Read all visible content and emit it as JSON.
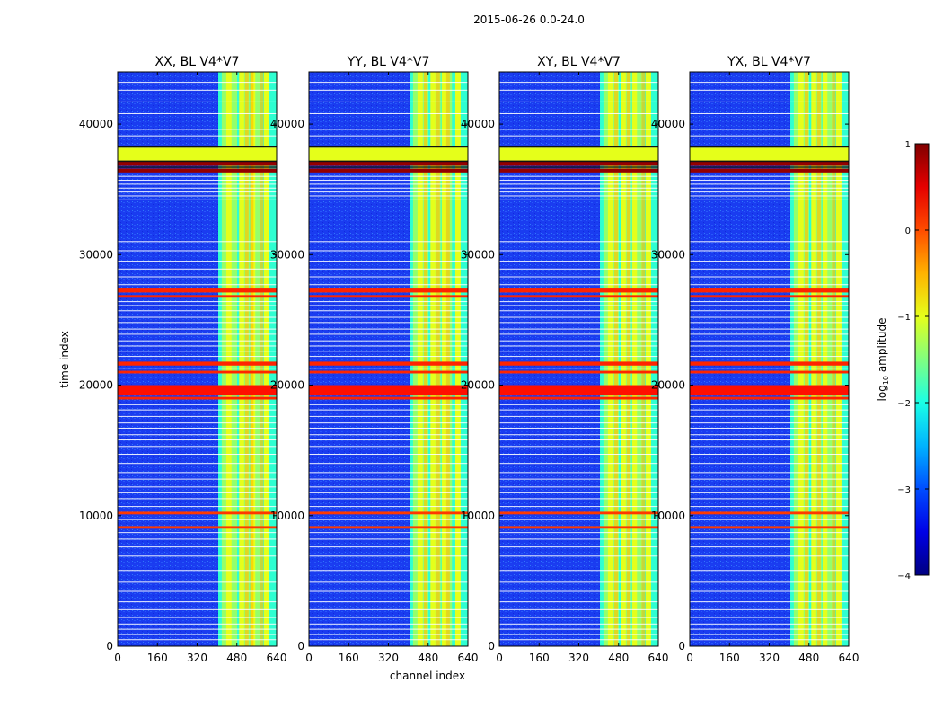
{
  "chart_data": {
    "type": "heatmap",
    "suptitle": "2015-06-26 0.0-24.0",
    "xlabel": "channel index",
    "ylabel": "time index",
    "xlim": [
      0,
      640
    ],
    "ylim": [
      0,
      44000
    ],
    "xticks": [
      "0",
      "160",
      "320",
      "480",
      "640"
    ],
    "yticks": [
      "0",
      "10000",
      "20000",
      "30000",
      "40000"
    ],
    "panels": [
      {
        "title": "XX, BL V4*V7",
        "rfi_band_start_channel": 405,
        "bright_channels": [
          430,
          448,
          470,
          500,
          520,
          545,
          565,
          600
        ],
        "hot_channels": [
          540,
          520,
          580
        ]
      },
      {
        "title": "YY, BL V4*V7",
        "rfi_band_start_channel": 405,
        "bright_channels": [
          430,
          448,
          470,
          500,
          520,
          545,
          565,
          600
        ],
        "hot_channels": [
          520,
          470,
          560
        ]
      },
      {
        "title": "XY, BL V4*V7",
        "rfi_band_start_channel": 405,
        "bright_channels": [
          430,
          448,
          470,
          500,
          520,
          545,
          565,
          600
        ],
        "hot_channels": [
          520,
          470,
          580
        ]
      },
      {
        "title": "YX, BL V4*V7",
        "rfi_band_start_channel": 405,
        "bright_channels": [
          430,
          448,
          470,
          500,
          520,
          545,
          565,
          600
        ],
        "hot_channels": [
          520,
          470,
          580
        ]
      }
    ],
    "flagged_time_ranges": [
      {
        "start": 37200,
        "end": 38200,
        "log10_amplitude": -1.0
      },
      {
        "start": 36800,
        "end": 37200,
        "log10_amplitude": 0.9
      },
      {
        "start": 36300,
        "end": 36600,
        "log10_amplitude": 0.9
      },
      {
        "start": 27100,
        "end": 27400,
        "log10_amplitude": 0.2
      },
      {
        "start": 26700,
        "end": 26900,
        "log10_amplitude": 0.2
      },
      {
        "start": 21500,
        "end": 21800,
        "log10_amplitude": 0.2
      },
      {
        "start": 20900,
        "end": 21100,
        "log10_amplitude": 0.2
      },
      {
        "start": 19200,
        "end": 20000,
        "log10_amplitude": 0.3
      },
      {
        "start": 18900,
        "end": 19100,
        "log10_amplitude": 0.2
      },
      {
        "start": 10100,
        "end": 10300,
        "log10_amplitude": 0.1
      },
      {
        "start": 9000,
        "end": 9200,
        "log10_amplitude": 0.1
      }
    ],
    "gap_lines_time": [
      43200,
      42600,
      41700,
      40800,
      39600,
      39100,
      36000,
      35700,
      35400,
      35100,
      34800,
      34500,
      34200,
      31000,
      30300,
      29500,
      28900,
      28300,
      27700,
      26400,
      26100,
      25700,
      25200,
      24800,
      24300,
      23900,
      23400,
      23000,
      22600,
      22200,
      21300,
      18500,
      18100,
      17600,
      17100,
      16700,
      16200,
      15800,
      15300,
      14700,
      14000,
      13300,
      12800,
      12200,
      11800,
      11300,
      10700,
      9700,
      8700,
      8200,
      7600,
      6900,
      6300,
      5800,
      4900,
      4200,
      3400,
      2800,
      2200,
      1700,
      1300,
      900,
      500
    ],
    "colorbar": {
      "label": "log",
      "label_sub": "10",
      "label_suffix": " amplitude",
      "range": [
        -4,
        1
      ],
      "ticks": [
        "1",
        "0",
        "−1",
        "−2",
        "−3",
        "−4"
      ],
      "colormap": "jet"
    }
  }
}
